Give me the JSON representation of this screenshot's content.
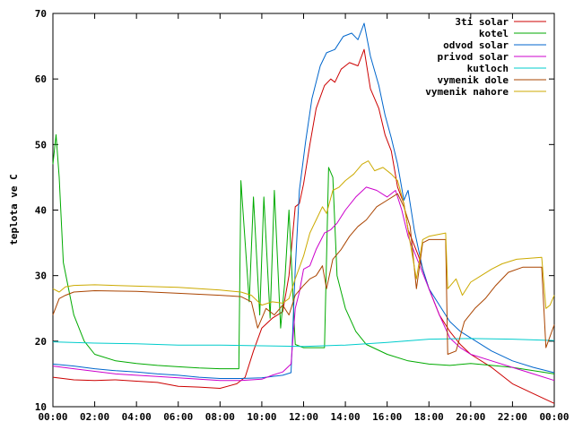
{
  "chart_data": {
    "type": "line",
    "ylabel": "teplota ve C",
    "xlabel": "",
    "ylim": [
      10,
      70
    ],
    "xlim": [
      0,
      24
    ],
    "x_ticks": [
      "00:00",
      "02:00",
      "04:00",
      "06:00",
      "08:00",
      "10:00",
      "12:00",
      "14:00",
      "16:00",
      "18:00",
      "20:00",
      "22:00",
      "00:00"
    ],
    "y_ticks": [
      "10",
      "20",
      "30",
      "40",
      "50",
      "60",
      "70"
    ],
    "grid": false,
    "legend_position": "top-right",
    "series": [
      {
        "name": "3ti solar",
        "color": "#cc0000",
        "points": [
          [
            0,
            14.5
          ],
          [
            1,
            14.1
          ],
          [
            2,
            14.0
          ],
          [
            3,
            14.1
          ],
          [
            4,
            13.9
          ],
          [
            5,
            13.7
          ],
          [
            6,
            13.1
          ],
          [
            7,
            13.0
          ],
          [
            8,
            12.8
          ],
          [
            8.8,
            13.5
          ],
          [
            9.2,
            14.5
          ],
          [
            9.6,
            18.5
          ],
          [
            10.0,
            22.0
          ],
          [
            10.5,
            23.5
          ],
          [
            11.0,
            24.5
          ],
          [
            11.3,
            30.0
          ],
          [
            11.6,
            40.5
          ],
          [
            11.8,
            41.0
          ],
          [
            12.0,
            44.0
          ],
          [
            12.3,
            50.0
          ],
          [
            12.6,
            55.5
          ],
          [
            13.0,
            59.0
          ],
          [
            13.3,
            60.0
          ],
          [
            13.5,
            59.5
          ],
          [
            13.8,
            61.5
          ],
          [
            14.2,
            62.5
          ],
          [
            14.6,
            62.0
          ],
          [
            14.9,
            64.5
          ],
          [
            15.2,
            58.5
          ],
          [
            15.6,
            55.5
          ],
          [
            15.9,
            51.5
          ],
          [
            16.2,
            49.0
          ],
          [
            16.5,
            43.5
          ],
          [
            16.8,
            41.0
          ],
          [
            17.0,
            37.0
          ],
          [
            17.5,
            33.0
          ],
          [
            18.0,
            28.0
          ],
          [
            18.5,
            24.0
          ],
          [
            19.0,
            21.5
          ],
          [
            19.5,
            19.5
          ],
          [
            20.0,
            18.0
          ],
          [
            21.0,
            16.0
          ],
          [
            22.0,
            13.5
          ],
          [
            23.0,
            12.0
          ],
          [
            24.0,
            10.5
          ]
        ]
      },
      {
        "name": "kotel",
        "color": "#00aa00",
        "points": [
          [
            0,
            47.0
          ],
          [
            0.15,
            51.5
          ],
          [
            0.3,
            45.0
          ],
          [
            0.5,
            32.0
          ],
          [
            1.0,
            24.0
          ],
          [
            1.5,
            20.0
          ],
          [
            2.0,
            18.0
          ],
          [
            3.0,
            17.0
          ],
          [
            4.0,
            16.6
          ],
          [
            5.0,
            16.3
          ],
          [
            6.0,
            16.1
          ],
          [
            7.0,
            15.9
          ],
          [
            8.0,
            15.8
          ],
          [
            8.9,
            15.8
          ],
          [
            9.0,
            44.5
          ],
          [
            9.4,
            26.0
          ],
          [
            9.6,
            42.0
          ],
          [
            9.9,
            24.0
          ],
          [
            10.1,
            42.0
          ],
          [
            10.4,
            23.5
          ],
          [
            10.6,
            43.0
          ],
          [
            10.9,
            22.0
          ],
          [
            11.1,
            29.0
          ],
          [
            11.3,
            40.0
          ],
          [
            11.6,
            19.5
          ],
          [
            12.0,
            19.0
          ],
          [
            13.0,
            19.0
          ],
          [
            13.2,
            46.5
          ],
          [
            13.4,
            45.0
          ],
          [
            13.6,
            30.0
          ],
          [
            14.0,
            25.0
          ],
          [
            14.5,
            21.5
          ],
          [
            15.0,
            19.5
          ],
          [
            16.0,
            18.0
          ],
          [
            17.0,
            17.0
          ],
          [
            18.0,
            16.5
          ],
          [
            19.0,
            16.3
          ],
          [
            20.0,
            16.6
          ],
          [
            21.0,
            16.3
          ],
          [
            22.0,
            16.0
          ],
          [
            23.0,
            15.5
          ],
          [
            24.0,
            15.0
          ]
        ]
      },
      {
        "name": "odvod solar",
        "color": "#0066cc",
        "points": [
          [
            0,
            16.5
          ],
          [
            1,
            16.2
          ],
          [
            2,
            15.8
          ],
          [
            3,
            15.5
          ],
          [
            4,
            15.3
          ],
          [
            5,
            15.0
          ],
          [
            6,
            14.8
          ],
          [
            7,
            14.5
          ],
          [
            8,
            14.3
          ],
          [
            9,
            14.3
          ],
          [
            10,
            14.4
          ],
          [
            10.5,
            14.6
          ],
          [
            11.0,
            14.8
          ],
          [
            11.4,
            15.2
          ],
          [
            11.6,
            31.0
          ],
          [
            11.8,
            43.0
          ],
          [
            12.1,
            50.5
          ],
          [
            12.4,
            57.0
          ],
          [
            12.8,
            62.0
          ],
          [
            13.1,
            64.0
          ],
          [
            13.5,
            64.5
          ],
          [
            13.9,
            66.5
          ],
          [
            14.3,
            67.0
          ],
          [
            14.6,
            66.0
          ],
          [
            14.9,
            68.5
          ],
          [
            15.2,
            63.5
          ],
          [
            15.6,
            59.0
          ],
          [
            15.9,
            54.5
          ],
          [
            16.2,
            51.0
          ],
          [
            16.5,
            47.0
          ],
          [
            16.8,
            41.5
          ],
          [
            17.0,
            43.0
          ],
          [
            17.3,
            37.0
          ],
          [
            17.7,
            31.0
          ],
          [
            18.0,
            28.0
          ],
          [
            18.5,
            25.5
          ],
          [
            19.0,
            23.0
          ],
          [
            19.5,
            21.5
          ],
          [
            20.0,
            20.5
          ],
          [
            21.0,
            18.5
          ],
          [
            22.0,
            17.0
          ],
          [
            23.0,
            16.0
          ],
          [
            24.0,
            15.2
          ]
        ]
      },
      {
        "name": "privod solar",
        "color": "#cc00cc",
        "points": [
          [
            0,
            16.2
          ],
          [
            1,
            15.8
          ],
          [
            2,
            15.4
          ],
          [
            3,
            15.0
          ],
          [
            4,
            14.8
          ],
          [
            5,
            14.6
          ],
          [
            6,
            14.4
          ],
          [
            7,
            14.2
          ],
          [
            8,
            14.0
          ],
          [
            9,
            14.0
          ],
          [
            10,
            14.2
          ],
          [
            10.5,
            14.8
          ],
          [
            11.0,
            15.3
          ],
          [
            11.4,
            16.5
          ],
          [
            11.6,
            25.0
          ],
          [
            11.8,
            27.5
          ],
          [
            12.0,
            31.0
          ],
          [
            12.3,
            31.5
          ],
          [
            12.6,
            34.0
          ],
          [
            13.0,
            36.5
          ],
          [
            13.3,
            37.0
          ],
          [
            13.6,
            38.0
          ],
          [
            14.0,
            40.0
          ],
          [
            14.5,
            42.0
          ],
          [
            15.0,
            43.5
          ],
          [
            15.5,
            43.0
          ],
          [
            16.0,
            42.0
          ],
          [
            16.4,
            43.0
          ],
          [
            16.7,
            40.0
          ],
          [
            17.0,
            36.0
          ],
          [
            17.5,
            32.0
          ],
          [
            18.0,
            28.0
          ],
          [
            18.5,
            24.0
          ],
          [
            19.0,
            20.5
          ],
          [
            19.5,
            19.0
          ],
          [
            20.0,
            18.0
          ],
          [
            21.0,
            17.0
          ],
          [
            22.0,
            16.0
          ],
          [
            23.0,
            15.0
          ],
          [
            24.0,
            14.0
          ]
        ]
      },
      {
        "name": "kutloch",
        "color": "#00cccc",
        "points": [
          [
            0,
            19.9
          ],
          [
            2,
            19.7
          ],
          [
            4,
            19.6
          ],
          [
            6,
            19.4
          ],
          [
            8,
            19.4
          ],
          [
            10,
            19.3
          ],
          [
            12,
            19.2
          ],
          [
            14,
            19.4
          ],
          [
            16,
            19.8
          ],
          [
            18,
            20.3
          ],
          [
            20,
            20.4
          ],
          [
            22,
            20.3
          ],
          [
            24,
            20.1
          ]
        ]
      },
      {
        "name": "vymenik dole",
        "color": "#aa4400",
        "points": [
          [
            0,
            24.0
          ],
          [
            0.3,
            26.5
          ],
          [
            0.6,
            27.0
          ],
          [
            1.0,
            27.5
          ],
          [
            2.0,
            27.7
          ],
          [
            4.0,
            27.6
          ],
          [
            6.0,
            27.3
          ],
          [
            8.0,
            27.0
          ],
          [
            9.0,
            26.8
          ],
          [
            9.5,
            26.0
          ],
          [
            9.8,
            22.0
          ],
          [
            10.2,
            25.0
          ],
          [
            10.6,
            24.0
          ],
          [
            11.0,
            25.5
          ],
          [
            11.3,
            24.0
          ],
          [
            11.6,
            27.0
          ],
          [
            12.0,
            28.5
          ],
          [
            12.3,
            29.5
          ],
          [
            12.6,
            30.0
          ],
          [
            12.9,
            31.5
          ],
          [
            13.1,
            28.0
          ],
          [
            13.4,
            32.5
          ],
          [
            13.8,
            34.0
          ],
          [
            14.2,
            36.0
          ],
          [
            14.6,
            37.5
          ],
          [
            15.0,
            38.5
          ],
          [
            15.5,
            40.5
          ],
          [
            16.0,
            41.5
          ],
          [
            16.5,
            42.5
          ],
          [
            16.8,
            40.5
          ],
          [
            17.1,
            37.5
          ],
          [
            17.4,
            28.0
          ],
          [
            17.7,
            35.0
          ],
          [
            18.0,
            35.5
          ],
          [
            18.8,
            35.5
          ],
          [
            18.9,
            18.0
          ],
          [
            19.3,
            18.5
          ],
          [
            19.7,
            23.0
          ],
          [
            20.2,
            25.0
          ],
          [
            20.7,
            26.5
          ],
          [
            21.2,
            28.5
          ],
          [
            21.8,
            30.5
          ],
          [
            22.5,
            31.3
          ],
          [
            23.4,
            31.3
          ],
          [
            23.6,
            19.0
          ],
          [
            24.0,
            22.5
          ]
        ]
      },
      {
        "name": "vymenik nahore",
        "color": "#ccaa00",
        "points": [
          [
            0,
            28.0
          ],
          [
            0.3,
            27.5
          ],
          [
            0.6,
            28.3
          ],
          [
            1.0,
            28.5
          ],
          [
            2.0,
            28.6
          ],
          [
            4.0,
            28.4
          ],
          [
            6.0,
            28.2
          ],
          [
            8.0,
            27.8
          ],
          [
            9.0,
            27.5
          ],
          [
            9.5,
            27.0
          ],
          [
            10.0,
            25.5
          ],
          [
            10.5,
            26.0
          ],
          [
            11.0,
            25.8
          ],
          [
            11.3,
            26.5
          ],
          [
            11.6,
            29.5
          ],
          [
            12.0,
            33.0
          ],
          [
            12.3,
            36.5
          ],
          [
            12.6,
            38.5
          ],
          [
            12.9,
            40.5
          ],
          [
            13.1,
            39.5
          ],
          [
            13.4,
            43.0
          ],
          [
            13.7,
            43.5
          ],
          [
            14.0,
            44.5
          ],
          [
            14.4,
            45.5
          ],
          [
            14.8,
            47.0
          ],
          [
            15.1,
            47.5
          ],
          [
            15.4,
            46.0
          ],
          [
            15.8,
            46.5
          ],
          [
            16.2,
            45.5
          ],
          [
            16.5,
            44.5
          ],
          [
            16.8,
            41.0
          ],
          [
            17.1,
            35.0
          ],
          [
            17.4,
            29.5
          ],
          [
            17.7,
            35.5
          ],
          [
            18.0,
            36.0
          ],
          [
            18.8,
            36.5
          ],
          [
            18.9,
            28.0
          ],
          [
            19.3,
            29.5
          ],
          [
            19.6,
            27.0
          ],
          [
            20.0,
            29.0
          ],
          [
            20.5,
            30.0
          ],
          [
            21.0,
            31.0
          ],
          [
            21.5,
            31.8
          ],
          [
            22.2,
            32.5
          ],
          [
            23.4,
            32.8
          ],
          [
            23.6,
            25.0
          ],
          [
            23.8,
            25.5
          ],
          [
            24.0,
            27.0
          ]
        ]
      }
    ]
  }
}
